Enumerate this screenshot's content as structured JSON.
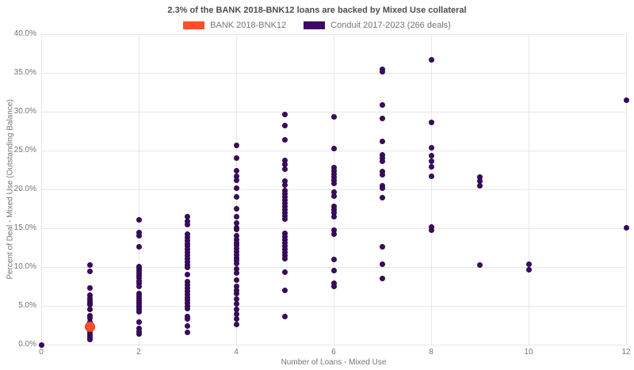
{
  "chart_data": {
    "type": "scatter",
    "title": "2.3% of the BANK 2018-BNK12 loans are backed by Mixed Use collateral",
    "xlabel": "Number of Loans - Mixed Use",
    "ylabel": "Percent of Deal - Mixed Use (Outstanding Balance)",
    "xlim": [
      0,
      12
    ],
    "ylim": [
      0,
      40
    ],
    "grid": true,
    "legend_position": "top-center",
    "x_ticks": [
      {
        "value": 0,
        "label": "0"
      },
      {
        "value": 2,
        "label": "2"
      },
      {
        "value": 4,
        "label": "4"
      },
      {
        "value": 6,
        "label": "6"
      },
      {
        "value": 8,
        "label": "8"
      },
      {
        "value": 10,
        "label": "10"
      },
      {
        "value": 12,
        "label": "12"
      }
    ],
    "y_ticks": [
      {
        "value": 0,
        "label": "0.0%"
      },
      {
        "value": 5,
        "label": "5.0%"
      },
      {
        "value": 10,
        "label": "10.0%"
      },
      {
        "value": 15,
        "label": "15.0%"
      },
      {
        "value": 20,
        "label": "20.0%"
      },
      {
        "value": 25,
        "label": "25.0%"
      },
      {
        "value": 30,
        "label": "30.0%"
      },
      {
        "value": 35,
        "label": "35.0%"
      },
      {
        "value": 40,
        "label": "40.0%"
      }
    ],
    "series": [
      {
        "name": "BANK 2018-BNK12",
        "color": "#fb4f28",
        "edge": "#e8431f",
        "marker_size": 13,
        "points": [
          [
            1,
            2.3
          ]
        ]
      },
      {
        "name": "Conduit 2017-2023 (266 deals)",
        "color": "#3d0a63",
        "edge": "#2c0747",
        "marker_size": 7,
        "points": [
          [
            0,
            0.0
          ],
          [
            1,
            10.3
          ],
          [
            1,
            9.4
          ],
          [
            1,
            7.3
          ],
          [
            1,
            6.4
          ],
          [
            1,
            6.0
          ],
          [
            1,
            5.7
          ],
          [
            1,
            5.4
          ],
          [
            1,
            5.2
          ],
          [
            1,
            4.5
          ],
          [
            1,
            3.7
          ],
          [
            1,
            3.4
          ],
          [
            1,
            2.9
          ],
          [
            1,
            2.5
          ],
          [
            1,
            2.2
          ],
          [
            1,
            1.9
          ],
          [
            1,
            1.6
          ],
          [
            1,
            1.3
          ],
          [
            1,
            1.0
          ],
          [
            1,
            0.7
          ],
          [
            2,
            16.1
          ],
          [
            2,
            14.4
          ],
          [
            2,
            14.0
          ],
          [
            2,
            12.6
          ],
          [
            2,
            10.1
          ],
          [
            2,
            9.8
          ],
          [
            2,
            9.5
          ],
          [
            2,
            9.2
          ],
          [
            2,
            8.9
          ],
          [
            2,
            8.6
          ],
          [
            2,
            8.2
          ],
          [
            2,
            7.9
          ],
          [
            2,
            7.5
          ],
          [
            2,
            6.6
          ],
          [
            2,
            6.3
          ],
          [
            2,
            6.0
          ],
          [
            2,
            5.7
          ],
          [
            2,
            5.4
          ],
          [
            2,
            5.1
          ],
          [
            2,
            4.8
          ],
          [
            2,
            4.5
          ],
          [
            2,
            4.2
          ],
          [
            2,
            2.9
          ],
          [
            2,
            2.1
          ],
          [
            2,
            1.7
          ],
          [
            2,
            1.4
          ],
          [
            3,
            16.5
          ],
          [
            3,
            15.9
          ],
          [
            3,
            15.5
          ],
          [
            3,
            14.2
          ],
          [
            3,
            13.8
          ],
          [
            3,
            13.4
          ],
          [
            3,
            13.0
          ],
          [
            3,
            12.7
          ],
          [
            3,
            12.3
          ],
          [
            3,
            11.9
          ],
          [
            3,
            11.5
          ],
          [
            3,
            11.1
          ],
          [
            3,
            10.7
          ],
          [
            3,
            10.3
          ],
          [
            3,
            10.0
          ],
          [
            3,
            9.0
          ],
          [
            3,
            8.1
          ],
          [
            3,
            7.7
          ],
          [
            3,
            7.3
          ],
          [
            3,
            6.9
          ],
          [
            3,
            6.5
          ],
          [
            3,
            6.1
          ],
          [
            3,
            5.8
          ],
          [
            3,
            5.4
          ],
          [
            3,
            5.0
          ],
          [
            3,
            4.6
          ],
          [
            3,
            3.6
          ],
          [
            3,
            3.3
          ],
          [
            3,
            2.4
          ],
          [
            3,
            1.6
          ],
          [
            4,
            25.7
          ],
          [
            4,
            24.0
          ],
          [
            4,
            22.4
          ],
          [
            4,
            21.7
          ],
          [
            4,
            21.2
          ],
          [
            4,
            20.2
          ],
          [
            4,
            19.0
          ],
          [
            4,
            17.5
          ],
          [
            4,
            16.5
          ],
          [
            4,
            15.7
          ],
          [
            4,
            15.1
          ],
          [
            4,
            14.8
          ],
          [
            4,
            14.0
          ],
          [
            4,
            13.5
          ],
          [
            4,
            13.1
          ],
          [
            4,
            12.8
          ],
          [
            4,
            12.4
          ],
          [
            4,
            12.0
          ],
          [
            4,
            11.6
          ],
          [
            4,
            11.2
          ],
          [
            4,
            10.9
          ],
          [
            4,
            10.5
          ],
          [
            4,
            9.7
          ],
          [
            4,
            9.2
          ],
          [
            4,
            8.3
          ],
          [
            4,
            7.5
          ],
          [
            4,
            7.0
          ],
          [
            4,
            6.6
          ],
          [
            4,
            5.9
          ],
          [
            4,
            5.3
          ],
          [
            4,
            4.5
          ],
          [
            4,
            3.9
          ],
          [
            4,
            3.3
          ],
          [
            4,
            2.6
          ],
          [
            5,
            29.6
          ],
          [
            5,
            28.2
          ],
          [
            5,
            26.4
          ],
          [
            5,
            23.7
          ],
          [
            5,
            23.2
          ],
          [
            5,
            22.6
          ],
          [
            5,
            21.1
          ],
          [
            5,
            20.6
          ],
          [
            5,
            19.8
          ],
          [
            5,
            19.4
          ],
          [
            5,
            19.0
          ],
          [
            5,
            18.6
          ],
          [
            5,
            18.2
          ],
          [
            5,
            17.8
          ],
          [
            5,
            17.4
          ],
          [
            5,
            17.0
          ],
          [
            5,
            16.6
          ],
          [
            5,
            16.2
          ],
          [
            5,
            14.3
          ],
          [
            5,
            13.9
          ],
          [
            5,
            13.5
          ],
          [
            5,
            13.1
          ],
          [
            5,
            12.7
          ],
          [
            5,
            12.3
          ],
          [
            5,
            11.9
          ],
          [
            5,
            11.5
          ],
          [
            5,
            11.1
          ],
          [
            5,
            9.3
          ],
          [
            5,
            7.0
          ],
          [
            5,
            3.6
          ],
          [
            6,
            29.3
          ],
          [
            6,
            25.3
          ],
          [
            6,
            22.8
          ],
          [
            6,
            22.4
          ],
          [
            6,
            22.0
          ],
          [
            6,
            21.6
          ],
          [
            6,
            21.2
          ],
          [
            6,
            20.8
          ],
          [
            6,
            19.6
          ],
          [
            6,
            19.1
          ],
          [
            6,
            17.8
          ],
          [
            6,
            17.4
          ],
          [
            6,
            17.0
          ],
          [
            6,
            16.5
          ],
          [
            6,
            14.7
          ],
          [
            6,
            14.2
          ],
          [
            6,
            11.0
          ],
          [
            6,
            9.5
          ],
          [
            6,
            7.9
          ],
          [
            6,
            7.5
          ],
          [
            7,
            35.5
          ],
          [
            7,
            35.2
          ],
          [
            7,
            30.9
          ],
          [
            7,
            29.1
          ],
          [
            7,
            26.2
          ],
          [
            7,
            24.4
          ],
          [
            7,
            24.0
          ],
          [
            7,
            23.6
          ],
          [
            7,
            22.3
          ],
          [
            7,
            21.9
          ],
          [
            7,
            20.5
          ],
          [
            7,
            20.2
          ],
          [
            7,
            18.9
          ],
          [
            7,
            12.6
          ],
          [
            7,
            10.4
          ],
          [
            7,
            8.5
          ],
          [
            8,
            36.7
          ],
          [
            8,
            28.6
          ],
          [
            8,
            25.4
          ],
          [
            8,
            24.3
          ],
          [
            8,
            23.6
          ],
          [
            8,
            22.9
          ],
          [
            8,
            21.7
          ],
          [
            8,
            15.2
          ],
          [
            8,
            14.7
          ],
          [
            9,
            21.6
          ],
          [
            9,
            21.1
          ],
          [
            9,
            20.5
          ],
          [
            9,
            10.3
          ],
          [
            10,
            10.4
          ],
          [
            10,
            9.6
          ],
          [
            12,
            31.5
          ],
          [
            12,
            15.1
          ]
        ]
      }
    ]
  }
}
